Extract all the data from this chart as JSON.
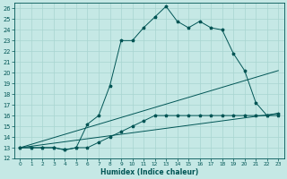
{
  "xlabel": "Humidex (Indice chaleur)",
  "bg_color": "#c5e8e5",
  "grid_color": "#a8d5d0",
  "line_color": "#005555",
  "xlim": [
    -0.5,
    23.5
  ],
  "ylim": [
    12,
    26.5
  ],
  "yticks": [
    12,
    13,
    14,
    15,
    16,
    17,
    18,
    19,
    20,
    21,
    22,
    23,
    24,
    25,
    26
  ],
  "xticks": [
    0,
    1,
    2,
    3,
    4,
    5,
    6,
    7,
    8,
    9,
    10,
    11,
    12,
    13,
    14,
    15,
    16,
    17,
    18,
    19,
    20,
    21,
    22,
    23
  ],
  "curve1_x": [
    0,
    1,
    2,
    3,
    4,
    5,
    6,
    7,
    8,
    9,
    10,
    11,
    12,
    13,
    14,
    15,
    16,
    17,
    18,
    19,
    20,
    21,
    22,
    23
  ],
  "curve1_y": [
    13,
    13,
    13,
    13,
    12.8,
    13,
    15.2,
    16,
    18.8,
    23,
    23,
    24.2,
    25.2,
    26.2,
    24.8,
    24.2,
    24.8,
    24.2,
    24.0,
    21.8,
    20.2,
    17.2,
    16.0,
    16.2
  ],
  "curve2_x": [
    0,
    1,
    2,
    3,
    4,
    5,
    6,
    7,
    8,
    9,
    10,
    11,
    12,
    13,
    14,
    15,
    16,
    17,
    18,
    19,
    20,
    21,
    22,
    23
  ],
  "curve2_y": [
    13,
    13,
    13,
    13,
    12.8,
    13,
    13,
    13.5,
    14,
    14.5,
    15,
    15.5,
    16,
    16,
    16,
    16,
    16,
    16,
    16,
    16,
    16,
    16,
    16,
    16
  ],
  "line2_x": [
    0,
    23
  ],
  "line2_y": [
    13,
    16.2
  ],
  "line3_x": [
    0,
    23
  ],
  "line3_y": [
    13,
    20.2
  ]
}
